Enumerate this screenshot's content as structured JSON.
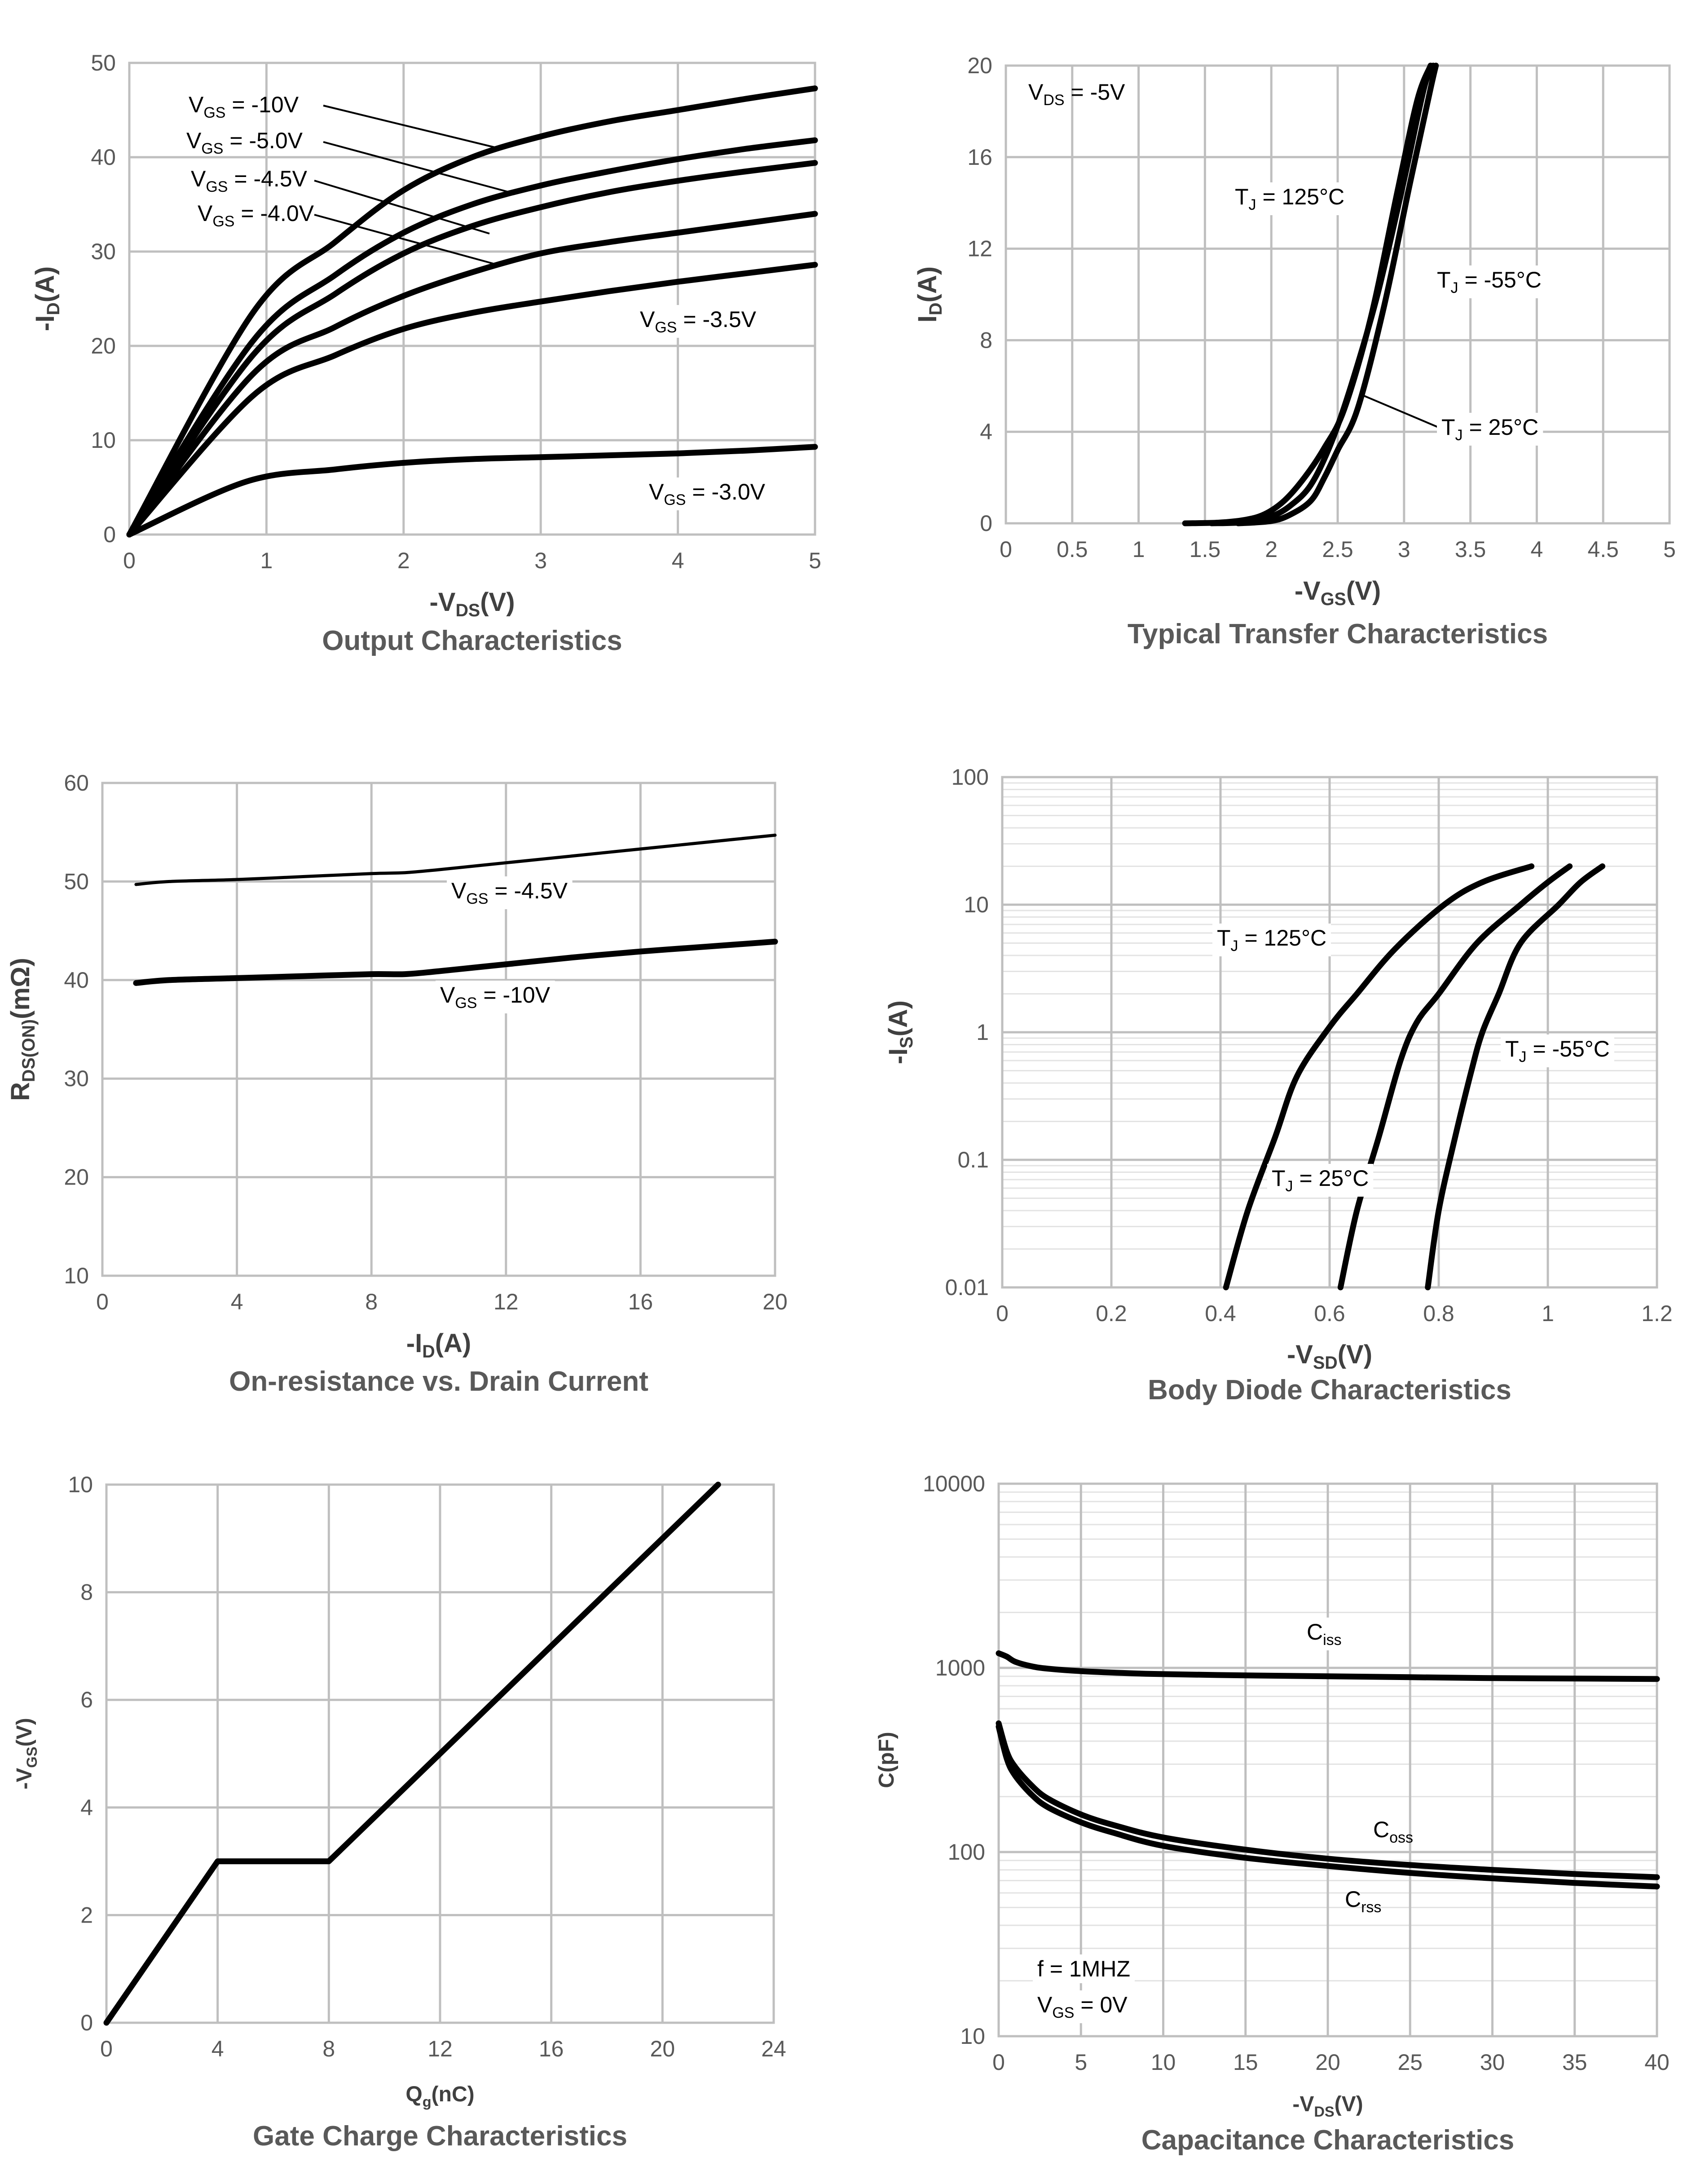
{
  "chart_data": [
    {
      "id": "output",
      "type": "line",
      "title": "Output Characteristics",
      "xlabel": {
        "main": "-V",
        "sub": "DS",
        "tail": "(V)"
      },
      "ylabel": {
        "main": "-I",
        "sub": "D",
        "tail": "(A)"
      },
      "xlim": [
        0,
        5
      ],
      "ylim": [
        0,
        50
      ],
      "xticks": [
        0,
        1,
        2,
        3,
        4,
        5
      ],
      "yticks": [
        0,
        10,
        20,
        30,
        40,
        50
      ],
      "xscale": "linear",
      "yscale": "linear",
      "series": [
        {
          "name": "VGS = -10V",
          "x": [
            0,
            0.9,
            1.5,
            2,
            2.5,
            3,
            3.5,
            4,
            4.5,
            5
          ],
          "y": [
            0,
            23.5,
            31,
            36.5,
            40,
            42.2,
            43.8,
            45,
            46.2,
            47.3
          ]
        },
        {
          "name": "VGS = -5.0V",
          "x": [
            0,
            0.9,
            1.5,
            2,
            2.5,
            3,
            3.5,
            4,
            4.5,
            5
          ],
          "y": [
            0,
            20.5,
            27.5,
            32,
            35,
            37,
            38.5,
            39.8,
            40.9,
            41.8
          ]
        },
        {
          "name": "VGS = -4.5V",
          "x": [
            0,
            0.9,
            1.5,
            2,
            2.5,
            3,
            3.5,
            4,
            4.5,
            5
          ],
          "y": [
            0,
            19,
            25.5,
            29.8,
            32.7,
            34.7,
            36.3,
            37.5,
            38.5,
            39.4
          ]
        },
        {
          "name": "VGS = -4.0V",
          "x": [
            0,
            0.9,
            1.5,
            2,
            2.5,
            3,
            3.5,
            4,
            4.5,
            5
          ],
          "y": [
            0,
            17,
            22,
            25.3,
            27.8,
            29.8,
            31,
            32,
            33,
            34
          ]
        },
        {
          "name": "VGS = -3.5V",
          "x": [
            0,
            0.9,
            1.5,
            2,
            2.5,
            3,
            3.5,
            4,
            4.5,
            5
          ],
          "y": [
            0,
            14.7,
            19,
            21.8,
            23.5,
            24.7,
            25.8,
            26.8,
            27.7,
            28.6
          ]
        },
        {
          "name": "VGS = -3.0V",
          "x": [
            0,
            0.85,
            1.5,
            2,
            2.5,
            3,
            3.5,
            4,
            4.5,
            5
          ],
          "y": [
            0,
            5.6,
            6.9,
            7.6,
            8,
            8.2,
            8.4,
            8.6,
            8.9,
            9.3
          ]
        }
      ],
      "annotations": [
        {
          "pre": "V",
          "sub": "GS",
          "post": " = -10V"
        },
        {
          "pre": "V",
          "sub": "GS",
          "post": " = -5.0V"
        },
        {
          "pre": "V",
          "sub": "GS",
          "post": " = -4.5V"
        },
        {
          "pre": "V",
          "sub": "GS",
          "post": " = -4.0V"
        },
        {
          "pre": "V",
          "sub": "GS",
          "post": " = -3.5V"
        },
        {
          "pre": "V",
          "sub": "GS",
          "post": " = -3.0V"
        }
      ]
    },
    {
      "id": "transfer",
      "type": "line",
      "title": "Typical Transfer Characteristics",
      "xlabel": {
        "main": "-V",
        "sub": "GS",
        "tail": "(V)"
      },
      "ylabel": {
        "main": "I",
        "sub": "D",
        "tail": "(A)"
      },
      "xlim": [
        0,
        5
      ],
      "ylim": [
        0,
        20
      ],
      "xticks": [
        0,
        0.5,
        1,
        1.5,
        2,
        2.5,
        3,
        3.5,
        4,
        4.5,
        5
      ],
      "yticks": [
        0,
        4,
        8,
        12,
        16,
        20
      ],
      "xscale": "linear",
      "yscale": "linear",
      "series": [
        {
          "name": "TJ = 125°C",
          "x": [
            1.35,
            1.6,
            1.8,
            1.95,
            2.1,
            2.25,
            2.4,
            2.55,
            2.75,
            2.95,
            3.1,
            3.2
          ],
          "y": [
            0,
            0.03,
            0.15,
            0.4,
            1,
            2,
            3.3,
            5,
            9,
            14.5,
            18.5,
            20
          ]
        },
        {
          "name": "TJ = 25°C",
          "x": [
            1.55,
            1.8,
            2.0,
            2.15,
            2.3,
            2.45,
            2.6,
            2.8,
            3.0,
            3.15,
            3.22
          ],
          "y": [
            0,
            0.05,
            0.3,
            0.8,
            1.7,
            3.5,
            6,
            10,
            15,
            19,
            20
          ]
        },
        {
          "name": "TJ = -55°C",
          "x": [
            1.75,
            2.0,
            2.15,
            2.3,
            2.4,
            2.5,
            2.65,
            2.85,
            3.05,
            3.2,
            3.24
          ],
          "y": [
            0,
            0.1,
            0.4,
            1,
            2,
            3.2,
            5,
            9.5,
            15,
            19,
            20
          ]
        }
      ],
      "annotations": [
        {
          "pre": "V",
          "sub": "DS",
          "post": " = -5V"
        },
        {
          "pre": "T",
          "sub": "J",
          "post": " = 125°C"
        },
        {
          "pre": "T",
          "sub": "J",
          "post": " = -55°C"
        },
        {
          "pre": "T",
          "sub": "J",
          "post": " = 25°C"
        }
      ]
    },
    {
      "id": "rdson",
      "type": "line",
      "title": "On-resistance vs. Drain Current",
      "xlabel": {
        "main": "-I",
        "sub": "D",
        "tail": "(A)"
      },
      "ylabel": {
        "main": "R",
        "sub": "DS(ON)",
        "tail": "(mΩ)"
      },
      "xlim": [
        0,
        20
      ],
      "ylim": [
        10,
        60
      ],
      "xticks": [
        0,
        4,
        8,
        12,
        16,
        20
      ],
      "yticks": [
        10,
        20,
        30,
        40,
        50,
        60
      ],
      "xscale": "linear",
      "yscale": "linear",
      "series": [
        {
          "name": "VGS = -4.5V",
          "thin": true,
          "x": [
            1,
            2,
            4,
            6,
            8,
            9,
            10,
            12,
            14,
            16,
            18,
            20
          ],
          "y": [
            49.7,
            50,
            50.2,
            50.5,
            50.8,
            50.9,
            51.2,
            51.9,
            52.6,
            53.3,
            54,
            54.7
          ]
        },
        {
          "name": "VGS = -10V",
          "x": [
            1,
            2,
            4,
            6,
            8,
            9,
            10,
            12,
            14,
            16,
            18,
            20
          ],
          "y": [
            39.7,
            40,
            40.2,
            40.4,
            40.6,
            40.6,
            40.9,
            41.6,
            42.3,
            42.9,
            43.4,
            43.9
          ]
        }
      ],
      "annotations": [
        {
          "pre": "V",
          "sub": "GS",
          "post": " = -4.5V"
        },
        {
          "pre": "V",
          "sub": "GS",
          "post": " = -10V"
        }
      ]
    },
    {
      "id": "diode",
      "type": "line",
      "title": "Body Diode Characteristics",
      "xlabel": {
        "main": "-V",
        "sub": "SD",
        "tail": "(V)"
      },
      "ylabel": {
        "main": "-I",
        "sub": "S",
        "tail": "(A)"
      },
      "xlim": [
        0,
        1.2
      ],
      "ylim": [
        0.01,
        100
      ],
      "xticks": [
        0,
        0.2,
        0.4,
        0.6,
        0.8,
        1,
        1.2
      ],
      "yticks": [
        0.01,
        0.1,
        1,
        10,
        100
      ],
      "xtick_labels": [
        "0",
        "0.2",
        "0.4",
        "0.6",
        "0.8",
        "1",
        "1.2"
      ],
      "ytick_labels": [
        "0.01",
        "0.1",
        "1",
        "10",
        "100"
      ],
      "xscale": "linear",
      "yscale": "log",
      "series": [
        {
          "name": "TJ = 125°C",
          "x": [
            0.41,
            0.45,
            0.5,
            0.54,
            0.6,
            0.65,
            0.72,
            0.81,
            0.88,
            0.97
          ],
          "y": [
            0.01,
            0.04,
            0.15,
            0.45,
            1.1,
            2,
            4.5,
            10,
            15,
            20
          ]
        },
        {
          "name": "TJ = 25°C",
          "x": [
            0.62,
            0.65,
            0.69,
            0.73,
            0.76,
            0.8,
            0.87,
            0.95,
            1.0,
            1.04
          ],
          "y": [
            0.01,
            0.04,
            0.15,
            0.6,
            1.2,
            2,
            5,
            10,
            15,
            20
          ]
        },
        {
          "name": "TJ = -55°C",
          "x": [
            0.78,
            0.8,
            0.83,
            0.86,
            0.88,
            0.91,
            0.95,
            1.02,
            1.06,
            1.1
          ],
          "y": [
            0.01,
            0.04,
            0.15,
            0.5,
            1,
            2,
            5,
            10,
            15,
            20
          ]
        }
      ],
      "annotations": [
        {
          "pre": "T",
          "sub": "J",
          "post": " = 125°C"
        },
        {
          "pre": "T",
          "sub": "J",
          "post": " = -55°C"
        },
        {
          "pre": "T",
          "sub": "J",
          "post": " = 25°C"
        }
      ]
    },
    {
      "id": "gatecharge",
      "type": "line",
      "title": "Gate Charge Characteristics",
      "xlabel": {
        "main": "Q",
        "sub": "g",
        "tail": "(nC)"
      },
      "ylabel": {
        "main": "-V",
        "sub": "GS",
        "tail": "(V)"
      },
      "xlim": [
        0,
        24
      ],
      "ylim": [
        0,
        10
      ],
      "xticks": [
        0,
        4,
        8,
        12,
        16,
        20,
        24
      ],
      "yticks": [
        0,
        2,
        4,
        6,
        8,
        10
      ],
      "xscale": "linear",
      "yscale": "linear",
      "series": [
        {
          "name": "VGS",
          "x": [
            0,
            4,
            8,
            22
          ],
          "y": [
            0,
            3,
            3,
            10
          ]
        }
      ],
      "annotations": []
    },
    {
      "id": "capacitance",
      "type": "line",
      "title": "Capacitance Characteristics",
      "xlabel": {
        "main": "-V",
        "sub": "DS",
        "tail": "(V)"
      },
      "ylabel": {
        "main": "C(pF)",
        "sub": "",
        "tail": ""
      },
      "xlim": [
        0,
        40
      ],
      "ylim": [
        10,
        10000
      ],
      "xticks": [
        0,
        5,
        10,
        15,
        20,
        25,
        30,
        35,
        40
      ],
      "yticks": [
        10,
        100,
        1000,
        10000
      ],
      "xscale": "linear",
      "yscale": "log",
      "series": [
        {
          "name": "Ciss",
          "x": [
            0,
            0.5,
            1,
            2,
            3,
            5,
            8,
            10,
            15,
            20,
            25,
            30,
            35,
            40
          ],
          "y": [
            1200,
            1150,
            1080,
            1020,
            990,
            960,
            935,
            925,
            910,
            900,
            890,
            880,
            875,
            870
          ]
        },
        {
          "name": "Coss",
          "x": [
            0,
            0.5,
            1,
            2,
            3,
            5,
            7,
            10,
            15,
            20,
            25,
            30,
            35,
            40
          ],
          "y": [
            500,
            350,
            290,
            230,
            195,
            160,
            140,
            120,
            103,
            92,
            85,
            80,
            76,
            73
          ]
        },
        {
          "name": "Crss",
          "x": [
            0,
            0.5,
            1,
            2,
            3,
            5,
            7,
            10,
            15,
            20,
            25,
            30,
            35,
            40
          ],
          "y": [
            480,
            320,
            260,
            205,
            175,
            145,
            127,
            108,
            93,
            84,
            77,
            72,
            68,
            65
          ]
        }
      ],
      "annotations": [
        {
          "pre": "C",
          "sub": "iss",
          "post": ""
        },
        {
          "pre": "C",
          "sub": "oss",
          "post": ""
        },
        {
          "pre": "C",
          "sub": "rss",
          "post": ""
        },
        {
          "pre": "f = 1MHZ",
          "sub": "",
          "post": ""
        },
        {
          "pre": "V",
          "sub": "GS",
          "post": " = 0V"
        }
      ]
    }
  ]
}
